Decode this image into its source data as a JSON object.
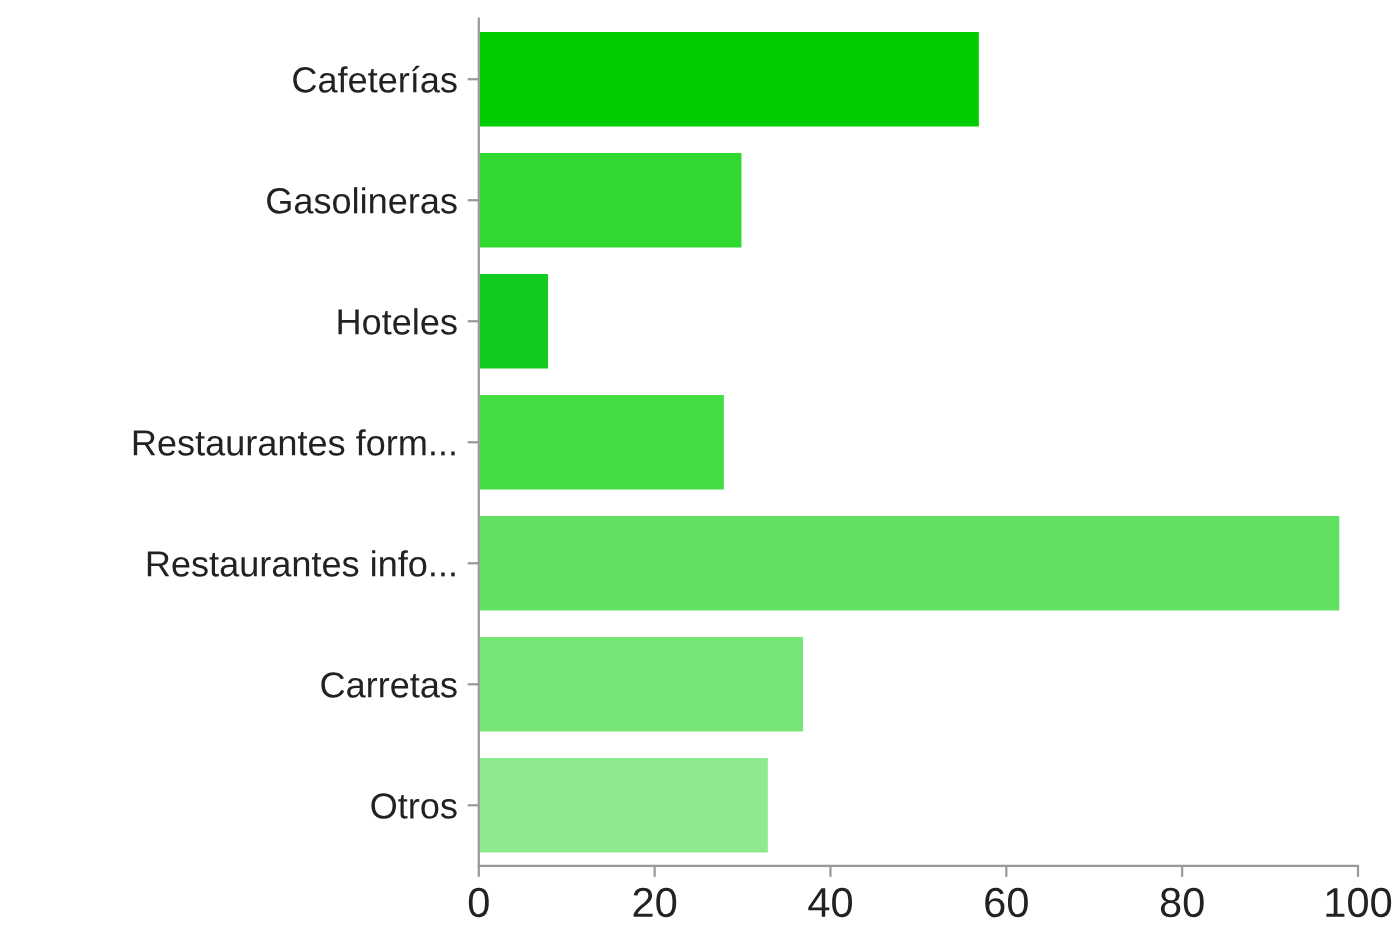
{
  "chart_data": {
    "type": "bar",
    "orientation": "horizontal",
    "categories": [
      "Cafeterías",
      "Gasolineras",
      "Hoteles",
      "Restaurantes form...",
      "Restaurantes info...",
      "Carretas",
      "Otros"
    ],
    "values": [
      57,
      30,
      8,
      28,
      98,
      37,
      33
    ],
    "colors": [
      "#00cc00",
      "#30d930",
      "#11cc1e",
      "#44dd44",
      "#62e062",
      "#77e677",
      "#8eea8e"
    ],
    "xlim": [
      0,
      100
    ],
    "xticks": [
      0,
      20,
      40,
      60,
      80,
      100
    ],
    "grid": false,
    "legend": false
  }
}
